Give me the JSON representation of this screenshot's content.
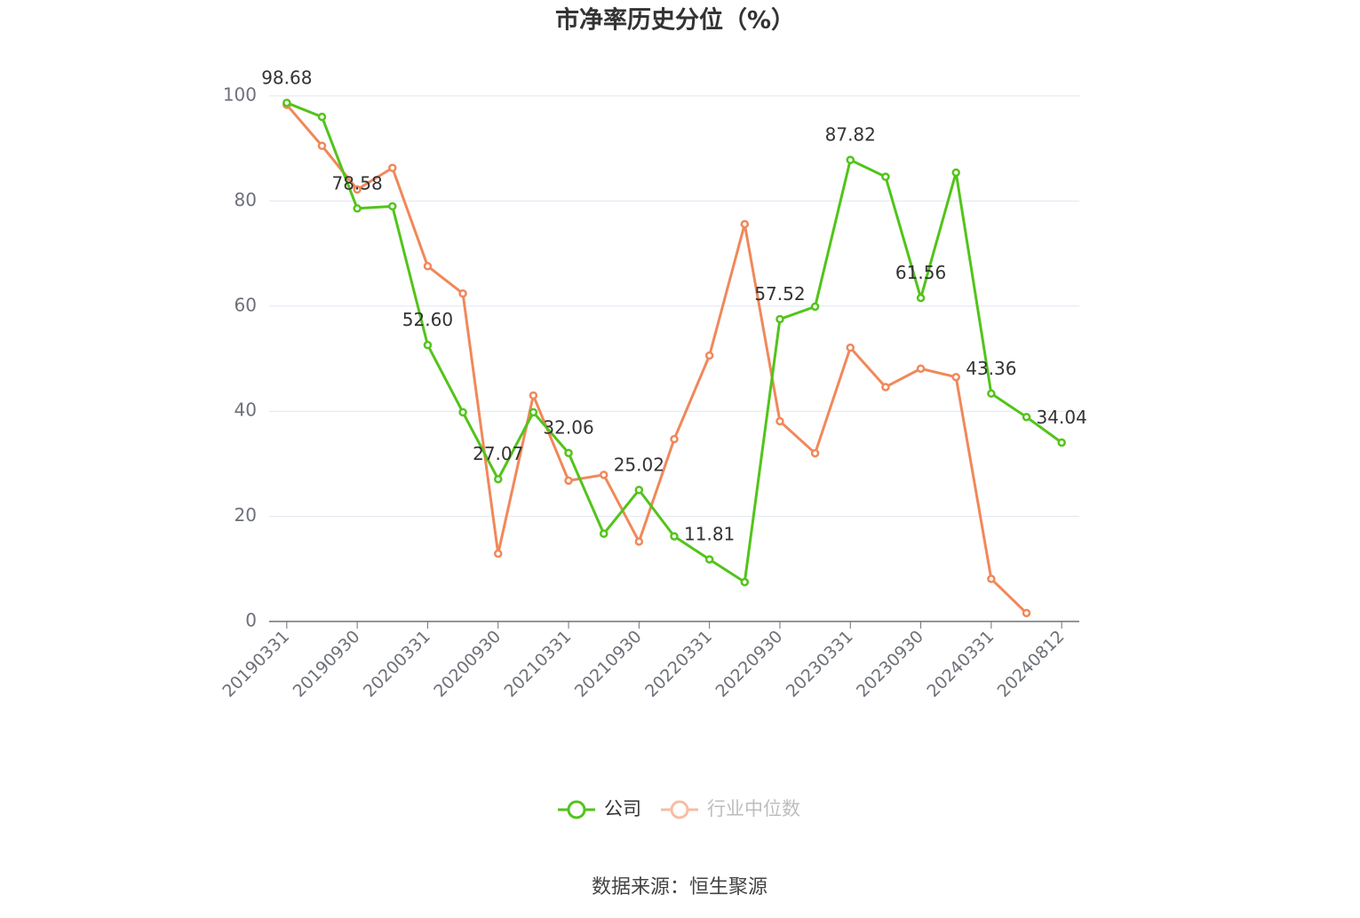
{
  "chart_data": {
    "type": "line",
    "title": "市净率历史分位（%）",
    "source": "数据来源：恒生聚源",
    "categories": [
      "20190331",
      null,
      "20190930",
      null,
      "20200331",
      null,
      "20200930",
      null,
      "20210331",
      null,
      "20210930",
      null,
      "20220331",
      null,
      "20220930",
      null,
      "20230331",
      null,
      "20230930",
      null,
      "20240331",
      null,
      "20240812"
    ],
    "series": [
      {
        "name": "公司",
        "color": "#52c41a",
        "values": [
          98.68,
          96,
          78.58,
          79,
          52.6,
          39.8,
          27.07,
          39.8,
          32.06,
          16.7,
          25.02,
          16.2,
          11.81,
          7.5,
          57.52,
          59.9,
          87.82,
          84.6,
          61.56,
          85.4,
          43.36,
          38.9,
          34.04
        ],
        "value_labels": [
          "98.68",
          null,
          "78.58",
          null,
          "52.60",
          null,
          "27.07",
          null,
          "32.06",
          null,
          "25.02",
          null,
          "11.81",
          null,
          "57.52",
          null,
          "87.82",
          null,
          "61.56",
          null,
          "43.36",
          null,
          "34.04"
        ]
      },
      {
        "name": "行业中位数",
        "color": "#f0885a",
        "values": [
          98.3,
          90.5,
          82.2,
          86.3,
          67.6,
          62.4,
          12.9,
          43,
          26.8,
          27.9,
          15.2,
          34.7,
          50.6,
          75.6,
          38.1,
          32,
          52.1,
          44.6,
          48.1,
          46.5,
          8.1,
          1.6,
          null
        ]
      }
    ],
    "ylim": [
      0,
      100
    ],
    "yticks": [
      0,
      20,
      40,
      60,
      80,
      100
    ],
    "grid": true,
    "legend": "bottom"
  }
}
